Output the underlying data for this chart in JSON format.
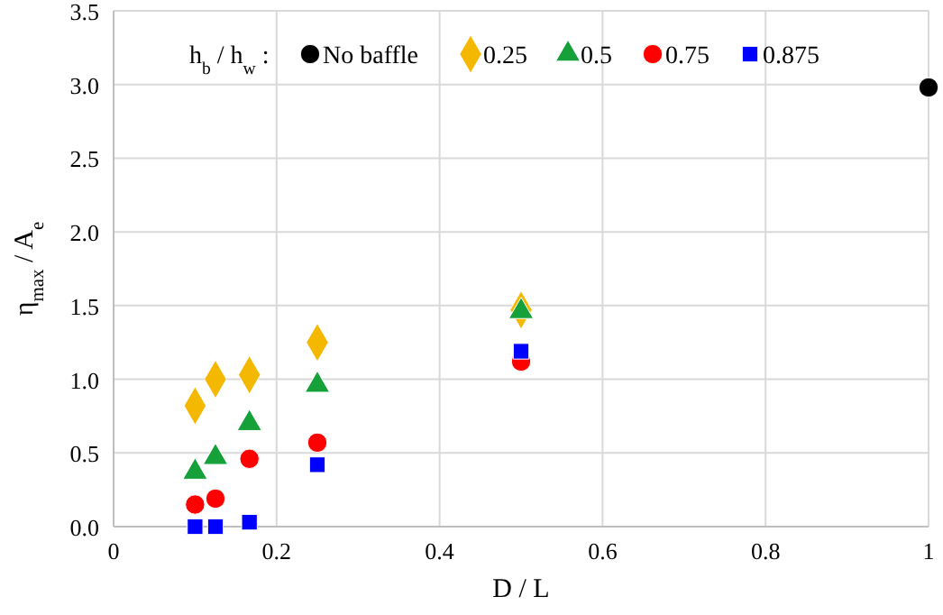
{
  "chart_data": {
    "type": "scatter",
    "xlabel": "D / L",
    "ylabel": "η$_{max}$ / A$_{e}$",
    "legend_title": "h$_{b}$ / h$_{w}$ :",
    "xlim": [
      0,
      1
    ],
    "xticks": [
      0,
      0.2,
      0.4,
      0.6,
      0.8,
      1
    ],
    "ylim": [
      0,
      3.5
    ],
    "yticks": [
      {
        "value": 0,
        "label": "0.0"
      },
      {
        "value": 0.5,
        "label": "0.5"
      },
      {
        "value": 1,
        "label": "1.0"
      },
      {
        "value": 1.5,
        "label": "1.5"
      },
      {
        "value": 2,
        "label": "2.0"
      },
      {
        "value": 2.5,
        "label": "2.5"
      },
      {
        "value": 3,
        "label": "3.0"
      },
      {
        "value": 3.5,
        "label": "3.5"
      }
    ],
    "grid": true,
    "legend": "top right",
    "series": [
      {
        "name": "No baffle",
        "color": "#000000",
        "marker": "circle",
        "x": [
          1
        ],
        "values": [
          2.98
        ]
      },
      {
        "name": "0.25",
        "color": "#f5b800",
        "marker": "diamond",
        "x": [
          0.1,
          0.125,
          0.1667,
          0.25,
          0.5
        ],
        "values": [
          0.82,
          1.0,
          1.03,
          1.25,
          1.47
        ]
      },
      {
        "name": "0.5",
        "color": "#15a03a",
        "marker": "triangle",
        "x": [
          0.1,
          0.125,
          0.1667,
          0.25,
          0.5
        ],
        "values": [
          0.37,
          0.47,
          0.7,
          0.96,
          1.46
        ]
      },
      {
        "name": "0.75",
        "color": "#ff0000",
        "marker": "circle",
        "x": [
          0.1,
          0.125,
          0.1667,
          0.25,
          0.5
        ],
        "values": [
          0.15,
          0.19,
          0.46,
          0.57,
          1.12
        ]
      },
      {
        "name": "0.875",
        "color": "#0000ff",
        "marker": "square",
        "x": [
          0.1,
          0.125,
          0.1667,
          0.25,
          0.5
        ],
        "values": [
          0.0,
          0.0,
          0.03,
          0.42,
          1.19
        ]
      }
    ]
  }
}
